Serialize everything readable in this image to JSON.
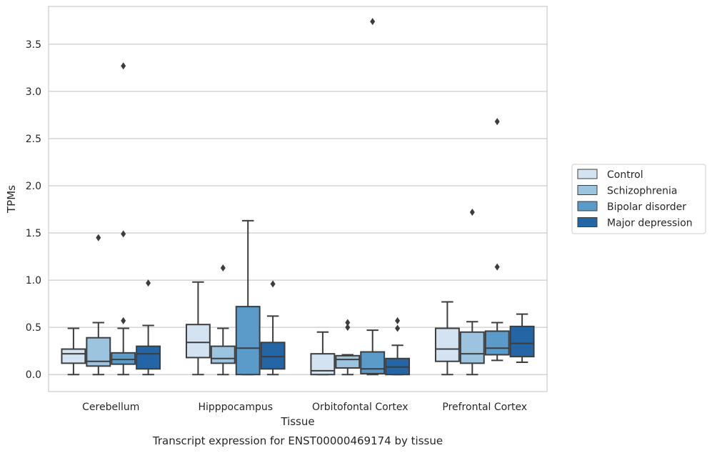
{
  "chart_data": {
    "type": "boxplot",
    "title": "",
    "caption": "Transcript expression for ENST00000469174 by tissue",
    "xlabel": "Tissue",
    "ylabel": "TPMs",
    "ylim": [
      -0.18,
      3.9
    ],
    "yticks": [
      "0.0",
      "0.5",
      "1.0",
      "1.5",
      "2.0",
      "2.5",
      "3.0",
      "3.5"
    ],
    "ytick_values": [
      0,
      0.5,
      1.0,
      1.5,
      2.0,
      2.5,
      3.0,
      3.5
    ],
    "grid": "horizontal",
    "legend_position": "right",
    "categories": [
      "Cerebellum",
      "Hipppocampus",
      "Orbitofontal Cortex",
      "Prefrontal Cortex"
    ],
    "series": [
      {
        "name": "Control",
        "color": "#d3e3f2",
        "boxes": [
          {
            "min": 0.0,
            "q1": 0.12,
            "median": 0.22,
            "q3": 0.27,
            "max": 0.49,
            "outliers": []
          },
          {
            "min": 0.0,
            "q1": 0.18,
            "median": 0.34,
            "q3": 0.53,
            "max": 0.98,
            "outliers": []
          },
          {
            "min": 0.0,
            "q1": 0.0,
            "median": 0.04,
            "q3": 0.22,
            "max": 0.45,
            "outliers": []
          },
          {
            "min": 0.0,
            "q1": 0.14,
            "median": 0.27,
            "q3": 0.49,
            "max": 0.77,
            "outliers": []
          }
        ]
      },
      {
        "name": "Schizophrenia",
        "color": "#9dc4de",
        "boxes": [
          {
            "min": 0.0,
            "q1": 0.09,
            "median": 0.14,
            "q3": 0.39,
            "max": 0.55,
            "outliers": [
              1.45
            ]
          },
          {
            "min": 0.0,
            "q1": 0.12,
            "median": 0.17,
            "q3": 0.3,
            "max": 0.49,
            "outliers": [
              1.13
            ]
          },
          {
            "min": 0.0,
            "q1": 0.07,
            "median": 0.16,
            "q3": 0.2,
            "max": 0.21,
            "outliers": [
              0.5,
              0.55
            ]
          },
          {
            "min": 0.0,
            "q1": 0.12,
            "median": 0.22,
            "q3": 0.45,
            "max": 0.56,
            "outliers": [
              1.72
            ]
          }
        ]
      },
      {
        "name": "Bipolar disorder",
        "color": "#5a9bc9",
        "boxes": [
          {
            "min": 0.0,
            "q1": 0.11,
            "median": 0.16,
            "q3": 0.23,
            "max": 0.49,
            "outliers": [
              3.27,
              1.49,
              0.57
            ]
          },
          {
            "min": 0.0,
            "q1": 0.0,
            "median": 0.28,
            "q3": 0.72,
            "max": 1.63,
            "outliers": []
          },
          {
            "min": 0.0,
            "q1": 0.01,
            "median": 0.06,
            "q3": 0.24,
            "max": 0.47,
            "outliers": [
              3.74
            ]
          },
          {
            "min": 0.15,
            "q1": 0.21,
            "median": 0.28,
            "q3": 0.46,
            "max": 0.55,
            "outliers": [
              2.68,
              1.14
            ]
          }
        ]
      },
      {
        "name": "Major depression",
        "color": "#2465a6",
        "boxes": [
          {
            "min": 0.0,
            "q1": 0.06,
            "median": 0.22,
            "q3": 0.3,
            "max": 0.52,
            "outliers": [
              0.97
            ]
          },
          {
            "min": 0.0,
            "q1": 0.06,
            "median": 0.19,
            "q3": 0.34,
            "max": 0.62,
            "outliers": [
              0.96
            ]
          },
          {
            "min": 0.0,
            "q1": 0.0,
            "median": 0.08,
            "q3": 0.17,
            "max": 0.31,
            "outliers": [
              0.57,
              0.49
            ]
          },
          {
            "min": 0.13,
            "q1": 0.19,
            "median": 0.33,
            "q3": 0.51,
            "max": 0.64,
            "outliers": []
          }
        ]
      }
    ]
  }
}
